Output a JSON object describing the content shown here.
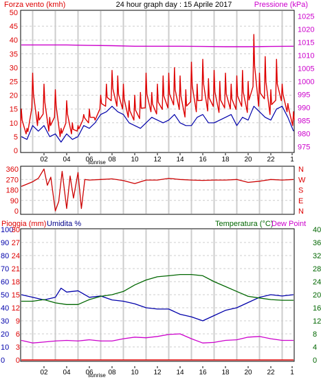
{
  "header": {
    "left_label": "Forza vento (kmh)",
    "title": "24 hour graph day : 15 Aprile 2017",
    "right_label": "Pressione (kPa)"
  },
  "colors": {
    "wind": "#dd0000",
    "wind_avg": "#0000aa",
    "pressure": "#cc00cc",
    "direction": "#cc0000",
    "rain": "#dd0000",
    "humidity": "#0000aa",
    "temperature": "#006600",
    "dewpoint": "#cc00cc",
    "grid_vert": "#cccccc",
    "grid_horz": "#cccccc"
  },
  "chart_data": [
    {
      "type": "line",
      "id": "wind_pressure",
      "x_ticks": [
        "02",
        "04",
        "06",
        "08",
        "10",
        "12",
        "14",
        "16",
        "18",
        "20",
        "22",
        "1"
      ],
      "x_annotation": "sunrise",
      "y_left_ticks": [
        0,
        5,
        10,
        15,
        20,
        25,
        30,
        35,
        40,
        45,
        50
      ],
      "y_left_range": [
        0,
        50
      ],
      "y_right_ticks": [
        975,
        980,
        985,
        990,
        995,
        1000,
        1005,
        1010,
        1015,
        1020,
        1025
      ],
      "y_right_range": [
        973,
        1027
      ],
      "series": [
        {
          "role": "gust",
          "axis": "left",
          "x": [
            0,
            0.5,
            1,
            1.5,
            2,
            2.5,
            3,
            3.5,
            4,
            4.5,
            5,
            5.5,
            6,
            6.5,
            7,
            7.5,
            8,
            8.5,
            9,
            9.5,
            10,
            10.5,
            11,
            11.5,
            12,
            12.5,
            13,
            13.5,
            14,
            14.5,
            15,
            15.5,
            16,
            16.5,
            17,
            17.5,
            18,
            18.5,
            19,
            19.5,
            20,
            20.5,
            21,
            21.5,
            22,
            22.5,
            23,
            23.5,
            24
          ],
          "values": [
            15,
            8,
            28,
            14,
            24,
            12,
            22,
            8,
            18,
            10,
            9,
            13,
            15,
            11,
            20,
            24,
            29,
            27,
            24,
            18,
            20,
            21,
            28,
            21,
            24,
            27,
            28,
            30,
            27,
            22,
            32,
            24,
            33,
            26,
            29,
            25,
            28,
            24,
            27,
            29,
            25,
            42,
            28,
            34,
            22,
            33,
            24,
            17,
            14
          ]
        },
        {
          "role": "average",
          "axis": "left",
          "x": [
            0,
            0.5,
            1,
            1.5,
            2,
            2.5,
            3,
            3.5,
            4,
            4.5,
            5,
            5.5,
            6,
            6.5,
            7,
            7.5,
            8,
            8.5,
            9,
            9.5,
            10,
            10.5,
            11,
            11.5,
            12,
            12.5,
            13,
            13.5,
            14,
            14.5,
            15,
            15.5,
            16,
            16.5,
            17,
            17.5,
            18,
            18.5,
            19,
            19.5,
            20,
            20.5,
            21,
            21.5,
            22,
            22.5,
            23,
            23.5,
            24
          ],
          "values": [
            5,
            4,
            9,
            7,
            9,
            5,
            6,
            3,
            6,
            4,
            5,
            9,
            8,
            10,
            13,
            14,
            16,
            14,
            13,
            10,
            9,
            8,
            10,
            12,
            11,
            10,
            11,
            13,
            10,
            9,
            9,
            12,
            13,
            10,
            10,
            11,
            12,
            13,
            9,
            12,
            11,
            16,
            14,
            12,
            11,
            15,
            16,
            12,
            7
          ]
        },
        {
          "role": "pressure",
          "axis": "right",
          "x": [
            0,
            2,
            4,
            6,
            8,
            10,
            12,
            14,
            16,
            18,
            20,
            22,
            24
          ],
          "values": [
            1014,
            1014,
            1014,
            1013.8,
            1013.7,
            1013.5,
            1013.5,
            1013.5,
            1013.4,
            1013.3,
            1013.3,
            1013.4,
            1013.5
          ]
        }
      ]
    },
    {
      "type": "line",
      "id": "wind_direction",
      "x_ticks": [
        "02",
        "04",
        "06",
        "08",
        "10",
        "12",
        "14",
        "16",
        "18",
        "20",
        "22",
        "1"
      ],
      "x_annotation": "sunrise",
      "y_left_ticks": [
        0,
        90,
        180,
        270,
        360
      ],
      "y_left_range": [
        0,
        360
      ],
      "y_right_labels": [
        "N",
        "W",
        "S",
        "E",
        "N"
      ],
      "series": [
        {
          "role": "direction",
          "x": [
            0,
            0.5,
            1,
            1.5,
            2,
            2.3,
            2.6,
            3,
            3.3,
            3.6,
            4,
            4.3,
            4.6,
            5,
            5.3,
            5.6,
            6,
            7,
            8,
            9,
            10,
            11,
            12,
            13,
            14,
            15,
            16,
            17,
            18,
            19,
            20,
            21,
            22,
            23,
            24
          ],
          "values": [
            210,
            230,
            250,
            280,
            360,
            220,
            290,
            0,
            80,
            340,
            20,
            300,
            110,
            330,
            20,
            270,
            265,
            270,
            275,
            260,
            235,
            265,
            265,
            280,
            270,
            265,
            262,
            265,
            265,
            270,
            245,
            255,
            270,
            265,
            270
          ]
        }
      ]
    },
    {
      "type": "line",
      "id": "rain_hum_temp",
      "x_ticks": [
        "02",
        "04",
        "06",
        "08",
        "10",
        "12",
        "14",
        "16",
        "18",
        "20",
        "22",
        "1"
      ],
      "x_annotation": "sunrise",
      "y_left_outer_ticks": [
        0,
        10,
        20,
        30,
        40,
        50,
        60,
        70,
        80,
        90,
        100
      ],
      "y_left_inner_ticks": [
        0,
        3,
        6,
        9,
        12,
        15,
        18,
        21,
        24,
        27,
        30
      ],
      "y_right_ticks": [
        0,
        4,
        8,
        12,
        16,
        20,
        24,
        28,
        32,
        36,
        40
      ],
      "series": [
        {
          "role": "rain",
          "axis": "rain",
          "x": [
            0,
            24
          ],
          "values": [
            0,
            0
          ]
        },
        {
          "role": "humidity",
          "axis": "humidity",
          "x": [
            0,
            1,
            2,
            3,
            3.5,
            4,
            5,
            6,
            7,
            8,
            9,
            10,
            11,
            12,
            13,
            14,
            15,
            16,
            17,
            18,
            19,
            20,
            21,
            22,
            23,
            24
          ],
          "values": [
            50,
            48,
            46,
            48,
            55,
            52,
            53,
            48,
            49,
            46,
            45,
            43,
            40,
            39,
            39,
            35,
            33,
            30,
            34,
            38,
            40,
            44,
            48,
            50,
            49,
            50
          ]
        },
        {
          "role": "temperature",
          "axis": "temperature",
          "x": [
            0,
            1,
            2,
            3,
            4,
            5,
            6,
            7,
            8,
            9,
            10,
            11,
            12,
            13,
            14,
            15,
            16,
            17,
            18,
            19,
            20,
            21,
            22,
            23,
            24
          ],
          "values": [
            18,
            18,
            18.5,
            17.5,
            17,
            17,
            18.5,
            19.5,
            20,
            21,
            23,
            24.5,
            25.5,
            25.8,
            26.2,
            26.2,
            25.8,
            24,
            22.5,
            21,
            19.5,
            19,
            18.5,
            18.3,
            18.3
          ]
        },
        {
          "role": "dewpoint",
          "axis": "temperature",
          "x": [
            0,
            1,
            2,
            3,
            4,
            5,
            6,
            7,
            8,
            9,
            10,
            11,
            12,
            13,
            14,
            15,
            16,
            17,
            18,
            19,
            20,
            21,
            22,
            23,
            24
          ],
          "values": [
            6,
            5.2,
            5.5,
            5.8,
            6,
            5.8,
            6.2,
            5.8,
            5.8,
            6.5,
            7,
            6.8,
            7.2,
            7.8,
            8,
            6.5,
            5.2,
            5.4,
            6,
            6.2,
            7,
            7.2,
            6.5,
            6,
            6
          ]
        }
      ]
    }
  ],
  "panel3_labels": {
    "rain": "Pioggia (mm)",
    "humidity": "Umidita %",
    "temperature": "Temperatura (°C)",
    "dewpoint": "Dew Point"
  }
}
